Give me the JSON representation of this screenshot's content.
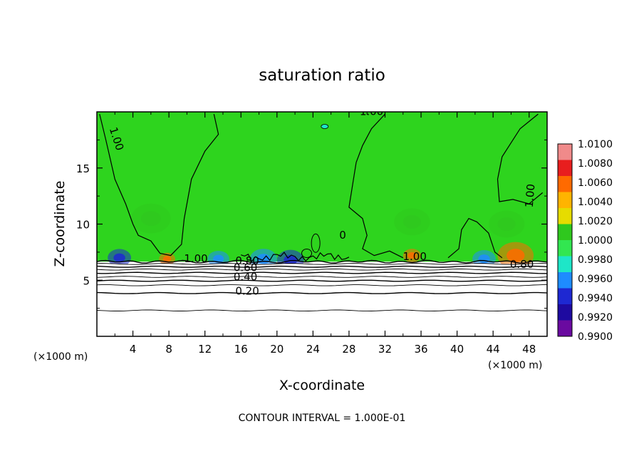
{
  "chart_data": {
    "type": "heatmap",
    "title": "saturation ratio",
    "xlabel": "X-coordinate",
    "ylabel": "Z-coordinate",
    "x_unit": "(×1000 m)",
    "z_unit": "(×1000 m)",
    "xlim": [
      0,
      50
    ],
    "ylim": [
      0,
      20
    ],
    "x_ticks": [
      4,
      8,
      12,
      16,
      20,
      24,
      28,
      32,
      36,
      40,
      44,
      48
    ],
    "y_ticks": [
      5,
      10,
      15
    ],
    "footer": "CONTOUR INTERVAL = 1.000E-01",
    "colorbar": {
      "levels": [
        "1.0100",
        "1.0080",
        "1.0060",
        "1.0040",
        "1.0020",
        "1.0000",
        "0.9980",
        "0.9960",
        "0.9940",
        "0.9920",
        "0.9900"
      ],
      "colors": [
        "#f08a8a",
        "#e81e1e",
        "#ff6a00",
        "#ffb400",
        "#e6dc00",
        "#2fc81e",
        "#32e650",
        "#1ee6c8",
        "#1e8cff",
        "#1e28d2",
        "#1e0aa0",
        "#6a0aa0"
      ]
    },
    "contour_labels": [
      {
        "text": "1.00",
        "x": 30.5,
        "z": 19.7,
        "rot": 0
      },
      {
        "text": "1.00",
        "x": 1.8,
        "z": 17.5,
        "rot": 72
      },
      {
        "text": "1.00",
        "x": 48.5,
        "z": 12.5,
        "rot": -85
      },
      {
        "text": "0",
        "x": 27.3,
        "z": 8.7,
        "rot": 0
      },
      {
        "text": "1.00",
        "x": 11.0,
        "z": 6.6,
        "rot": 0
      },
      {
        "text": "1.00",
        "x": 35.3,
        "z": 6.8,
        "rot": 0
      },
      {
        "text": "0.80",
        "x": 16.7,
        "z": 6.4,
        "rot": 0
      },
      {
        "text": "0.60",
        "x": 16.5,
        "z": 5.8,
        "rot": 0
      },
      {
        "text": "0.40",
        "x": 16.5,
        "z": 5.0,
        "rot": 0
      },
      {
        "text": "0.20",
        "x": 16.7,
        "z": 3.7,
        "rot": 0
      },
      {
        "text": "0.80",
        "x": 47.2,
        "z": 6.1,
        "rot": 0
      }
    ],
    "stable_layer_contours_z": [
      6.65,
      6.45,
      6.2,
      5.95,
      5.65,
      5.3,
      4.95,
      4.55,
      3.85,
      2.3
    ],
    "warm_spots": [
      {
        "x": 6.0,
        "z": 10.5,
        "r": 2.2,
        "value": 1.001
      },
      {
        "x": 7.8,
        "z": 6.9,
        "r": 0.9,
        "value": 1.007
      },
      {
        "x": 35.0,
        "z": 7.2,
        "r": 1.0,
        "value": 1.006
      },
      {
        "x": 35.0,
        "z": 10.2,
        "r": 2.0,
        "value": 1.0008
      },
      {
        "x": 46.5,
        "z": 7.2,
        "r": 2.0,
        "value": 1.007
      },
      {
        "x": 45.5,
        "z": 10.0,
        "r": 2.0,
        "value": 1.001
      }
    ],
    "dry_spots": [
      {
        "x": 2.5,
        "z": 7.0,
        "r": 1.3,
        "value": 0.9925
      },
      {
        "x": 13.5,
        "z": 6.9,
        "r": 1.2,
        "value": 0.9955
      },
      {
        "x": 18.5,
        "z": 6.9,
        "r": 1.5,
        "value": 0.995
      },
      {
        "x": 21.5,
        "z": 6.8,
        "r": 1.5,
        "value": 0.9935
      },
      {
        "x": 43.0,
        "z": 6.9,
        "r": 1.3,
        "value": 0.995
      }
    ]
  }
}
